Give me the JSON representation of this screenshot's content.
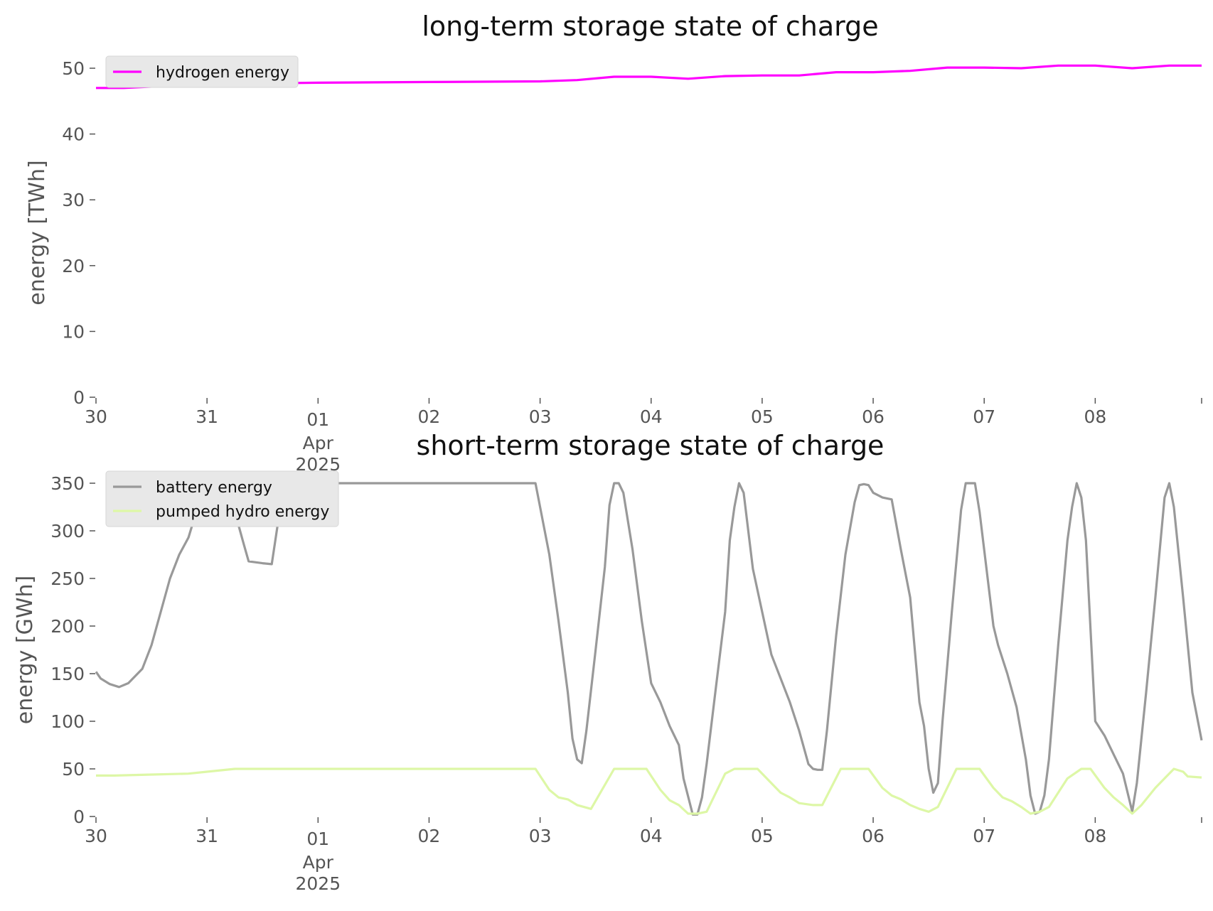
{
  "chart_data": [
    {
      "type": "line",
      "title": "long-term storage state of charge",
      "xlabel": "",
      "ylabel": "energy [TWh]",
      "xlim": [
        "2025-03-30 00:00",
        "2025-04-08 23:00"
      ],
      "ylim": [
        0,
        50
      ],
      "yticks": [
        0,
        10,
        20,
        30,
        40,
        50
      ],
      "xticks": [
        {
          "date": "2025-03-30",
          "label": "30"
        },
        {
          "date": "2025-03-31",
          "label": "31"
        },
        {
          "date": "2025-04-01",
          "label": "01",
          "month": "Apr",
          "year": "2025"
        },
        {
          "date": "2025-04-02",
          "label": "02"
        },
        {
          "date": "2025-04-03",
          "label": "03"
        },
        {
          "date": "2025-04-04",
          "label": "04"
        },
        {
          "date": "2025-04-05",
          "label": "05"
        },
        {
          "date": "2025-04-06",
          "label": "06"
        },
        {
          "date": "2025-04-07",
          "label": "07"
        },
        {
          "date": "2025-04-08",
          "label": "08"
        }
      ],
      "grid": false,
      "legend_position": "top-left",
      "series": [
        {
          "name": "hydrogen energy",
          "color": "#ff00ff",
          "points": [
            [
              "2025-03-30 00:00",
              47.0
            ],
            [
              "2025-03-30 06:00",
              47.0
            ],
            [
              "2025-03-30 12:00",
              47.2
            ],
            [
              "2025-03-30 18:00",
              47.5
            ],
            [
              "2025-03-31 00:00",
              47.6
            ],
            [
              "2025-03-31 12:00",
              47.7
            ],
            [
              "2025-04-01 00:00",
              47.8
            ],
            [
              "2025-04-02 00:00",
              47.9
            ],
            [
              "2025-04-03 00:00",
              48.0
            ],
            [
              "2025-04-03 08:00",
              48.2
            ],
            [
              "2025-04-03 16:00",
              48.7
            ],
            [
              "2025-04-04 00:00",
              48.7
            ],
            [
              "2025-04-04 08:00",
              48.4
            ],
            [
              "2025-04-04 16:00",
              48.8
            ],
            [
              "2025-04-05 00:00",
              48.9
            ],
            [
              "2025-04-05 08:00",
              48.9
            ],
            [
              "2025-04-05 16:00",
              49.4
            ],
            [
              "2025-04-06 00:00",
              49.4
            ],
            [
              "2025-04-06 08:00",
              49.6
            ],
            [
              "2025-04-06 16:00",
              50.1
            ],
            [
              "2025-04-07 00:00",
              50.1
            ],
            [
              "2025-04-07 08:00",
              50.0
            ],
            [
              "2025-04-07 16:00",
              50.4
            ],
            [
              "2025-04-08 00:00",
              50.4
            ],
            [
              "2025-04-08 08:00",
              50.0
            ],
            [
              "2025-04-08 16:00",
              50.4
            ],
            [
              "2025-04-08 23:00",
              50.4
            ]
          ]
        }
      ]
    },
    {
      "type": "line",
      "title": "short-term storage state of charge",
      "xlabel": "",
      "ylabel": "energy [GWh]",
      "xlim": [
        "2025-03-30 00:00",
        "2025-04-08 23:00"
      ],
      "ylim": [
        0,
        350
      ],
      "yticks": [
        0,
        50,
        100,
        150,
        200,
        250,
        300,
        350
      ],
      "xticks": [
        {
          "date": "2025-03-30",
          "label": "30"
        },
        {
          "date": "2025-03-31",
          "label": "31"
        },
        {
          "date": "2025-04-01",
          "label": "01",
          "month": "Apr",
          "year": "2025"
        },
        {
          "date": "2025-04-02",
          "label": "02"
        },
        {
          "date": "2025-04-03",
          "label": "03"
        },
        {
          "date": "2025-04-04",
          "label": "04"
        },
        {
          "date": "2025-04-05",
          "label": "05"
        },
        {
          "date": "2025-04-06",
          "label": "06"
        },
        {
          "date": "2025-04-07",
          "label": "07"
        },
        {
          "date": "2025-04-08",
          "label": "08"
        }
      ],
      "grid": false,
      "legend_position": "top-left",
      "series": [
        {
          "name": "battery energy",
          "color": "#999999",
          "points": [
            [
              "2025-03-30 00:00",
              152
            ],
            [
              "2025-03-30 01:00",
              145
            ],
            [
              "2025-03-30 03:00",
              139
            ],
            [
              "2025-03-30 05:00",
              136
            ],
            [
              "2025-03-30 07:00",
              140
            ],
            [
              "2025-03-30 10:00",
              155
            ],
            [
              "2025-03-30 12:00",
              180
            ],
            [
              "2025-03-30 14:00",
              215
            ],
            [
              "2025-03-30 16:00",
              250
            ],
            [
              "2025-03-30 18:00",
              275
            ],
            [
              "2025-03-30 20:00",
              293
            ],
            [
              "2025-03-30 22:00",
              325
            ],
            [
              "2025-03-31 00:00",
              348
            ],
            [
              "2025-03-31 02:00",
              350
            ],
            [
              "2025-03-31 04:00",
              345
            ],
            [
              "2025-03-31 06:00",
              320
            ],
            [
              "2025-03-31 08:00",
              285
            ],
            [
              "2025-03-31 09:00",
              268
            ],
            [
              "2025-03-31 12:00",
              266
            ],
            [
              "2025-03-31 14:00",
              265
            ],
            [
              "2025-03-31 16:00",
              330
            ],
            [
              "2025-03-31 18:00",
              350
            ],
            [
              "2025-04-02 23:00",
              350
            ],
            [
              "2025-04-03 02:00",
              275
            ],
            [
              "2025-04-03 04:00",
              205
            ],
            [
              "2025-04-03 06:00",
              130
            ],
            [
              "2025-04-03 07:00",
              82
            ],
            [
              "2025-04-03 08:00",
              60
            ],
            [
              "2025-04-03 09:00",
              56
            ],
            [
              "2025-04-03 10:00",
              90
            ],
            [
              "2025-04-03 12:00",
              175
            ],
            [
              "2025-04-03 14:00",
              262
            ],
            [
              "2025-04-03 15:00",
              327
            ],
            [
              "2025-04-03 16:00",
              350
            ],
            [
              "2025-04-03 17:00",
              350
            ],
            [
              "2025-04-03 18:00",
              340
            ],
            [
              "2025-04-03 20:00",
              280
            ],
            [
              "2025-04-03 22:00",
              205
            ],
            [
              "2025-04-04 00:00",
              140
            ],
            [
              "2025-04-04 02:00",
              120
            ],
            [
              "2025-04-04 04:00",
              95
            ],
            [
              "2025-04-04 06:00",
              75
            ],
            [
              "2025-04-04 07:00",
              40
            ],
            [
              "2025-04-04 09:00",
              2
            ],
            [
              "2025-04-04 10:00",
              2
            ],
            [
              "2025-04-04 11:00",
              20
            ],
            [
              "2025-04-04 12:00",
              55
            ],
            [
              "2025-04-04 14:00",
              135
            ],
            [
              "2025-04-04 16:00",
              215
            ],
            [
              "2025-04-04 17:00",
              290
            ],
            [
              "2025-04-04 18:00",
              325
            ],
            [
              "2025-04-04 19:00",
              350
            ],
            [
              "2025-04-04 20:00",
              340
            ],
            [
              "2025-04-04 22:00",
              260
            ],
            [
              "2025-04-05 00:00",
              215
            ],
            [
              "2025-04-05 02:00",
              170
            ],
            [
              "2025-04-05 04:00",
              145
            ],
            [
              "2025-04-05 06:00",
              120
            ],
            [
              "2025-04-05 08:00",
              90
            ],
            [
              "2025-04-05 10:00",
              55
            ],
            [
              "2025-04-05 11:00",
              50
            ],
            [
              "2025-04-05 12:00",
              49
            ],
            [
              "2025-04-05 13:00",
              49
            ],
            [
              "2025-04-05 14:00",
              90
            ],
            [
              "2025-04-05 16:00",
              190
            ],
            [
              "2025-04-05 18:00",
              275
            ],
            [
              "2025-04-05 20:00",
              330
            ],
            [
              "2025-04-05 21:00",
              348
            ],
            [
              "2025-04-05 22:00",
              349
            ],
            [
              "2025-04-05 23:00",
              348
            ],
            [
              "2025-04-06 00:00",
              340
            ],
            [
              "2025-04-06 02:00",
              335
            ],
            [
              "2025-04-06 04:00",
              333
            ],
            [
              "2025-04-06 06:00",
              280
            ],
            [
              "2025-04-06 08:00",
              230
            ],
            [
              "2025-04-06 10:00",
              120
            ],
            [
              "2025-04-06 11:00",
              95
            ],
            [
              "2025-04-06 12:00",
              50
            ],
            [
              "2025-04-06 13:00",
              25
            ],
            [
              "2025-04-06 14:00",
              35
            ],
            [
              "2025-04-06 15:00",
              100
            ],
            [
              "2025-04-06 17:00",
              215
            ],
            [
              "2025-04-06 19:00",
              322
            ],
            [
              "2025-04-06 20:00",
              350
            ],
            [
              "2025-04-06 22:00",
              350
            ],
            [
              "2025-04-06 23:00",
              320
            ],
            [
              "2025-04-07 02:00",
              200
            ],
            [
              "2025-04-07 03:00",
              180
            ],
            [
              "2025-04-07 05:00",
              150
            ],
            [
              "2025-04-07 07:00",
              115
            ],
            [
              "2025-04-07 09:00",
              60
            ],
            [
              "2025-04-07 10:00",
              22
            ],
            [
              "2025-04-07 11:00",
              3
            ],
            [
              "2025-04-07 12:00",
              5
            ],
            [
              "2025-04-07 13:00",
              22
            ],
            [
              "2025-04-07 14:00",
              60
            ],
            [
              "2025-04-07 16:00",
              180
            ],
            [
              "2025-04-07 18:00",
              290
            ],
            [
              "2025-04-07 19:00",
              325
            ],
            [
              "2025-04-07 20:00",
              350
            ],
            [
              "2025-04-07 21:00",
              335
            ],
            [
              "2025-04-07 22:00",
              290
            ],
            [
              "2025-04-08 00:00",
              100
            ],
            [
              "2025-04-08 02:00",
              85
            ],
            [
              "2025-04-08 04:00",
              65
            ],
            [
              "2025-04-08 06:00",
              45
            ],
            [
              "2025-04-08 07:00",
              25
            ],
            [
              "2025-04-08 08:00",
              5
            ],
            [
              "2025-04-08 09:00",
              35
            ],
            [
              "2025-04-08 11:00",
              130
            ],
            [
              "2025-04-08 13:00",
              230
            ],
            [
              "2025-04-08 15:00",
              335
            ],
            [
              "2025-04-08 16:00",
              350
            ],
            [
              "2025-04-08 17:00",
              325
            ],
            [
              "2025-04-08 19:00",
              230
            ],
            [
              "2025-04-08 21:00",
              130
            ],
            [
              "2025-04-08 23:00",
              80
            ]
          ]
        },
        {
          "name": "pumped hydro energy",
          "color": "#ddf7a6",
          "points": [
            [
              "2025-03-30 00:00",
              43
            ],
            [
              "2025-03-30 04:00",
              43
            ],
            [
              "2025-03-30 12:00",
              44
            ],
            [
              "2025-03-30 20:00",
              45
            ],
            [
              "2025-03-31 00:00",
              47
            ],
            [
              "2025-03-31 06:00",
              50
            ],
            [
              "2025-04-02 23:00",
              50
            ],
            [
              "2025-04-03 02:00",
              28
            ],
            [
              "2025-04-03 04:00",
              20
            ],
            [
              "2025-04-03 06:00",
              18
            ],
            [
              "2025-04-03 08:00",
              12
            ],
            [
              "2025-04-03 11:00",
              8
            ],
            [
              "2025-04-03 16:00",
              50
            ],
            [
              "2025-04-03 23:00",
              50
            ],
            [
              "2025-04-04 02:00",
              28
            ],
            [
              "2025-04-04 04:00",
              17
            ],
            [
              "2025-04-04 06:00",
              12
            ],
            [
              "2025-04-04 08:00",
              3
            ],
            [
              "2025-04-04 10:00",
              3
            ],
            [
              "2025-04-04 12:00",
              5
            ],
            [
              "2025-04-04 16:00",
              45
            ],
            [
              "2025-04-04 18:00",
              50
            ],
            [
              "2025-04-04 23:00",
              50
            ],
            [
              "2025-04-05 02:00",
              35
            ],
            [
              "2025-04-05 04:00",
              25
            ],
            [
              "2025-04-05 06:00",
              20
            ],
            [
              "2025-04-05 08:00",
              14
            ],
            [
              "2025-04-05 11:00",
              12
            ],
            [
              "2025-04-05 13:00",
              12
            ],
            [
              "2025-04-05 17:00",
              50
            ],
            [
              "2025-04-05 23:00",
              50
            ],
            [
              "2025-04-06 02:00",
              30
            ],
            [
              "2025-04-06 04:00",
              22
            ],
            [
              "2025-04-06 06:00",
              18
            ],
            [
              "2025-04-06 08:00",
              12
            ],
            [
              "2025-04-06 10:00",
              8
            ],
            [
              "2025-04-06 12:00",
              5
            ],
            [
              "2025-04-06 14:00",
              10
            ],
            [
              "2025-04-06 18:00",
              50
            ],
            [
              "2025-04-06 23:00",
              50
            ],
            [
              "2025-04-07 02:00",
              30
            ],
            [
              "2025-04-07 04:00",
              20
            ],
            [
              "2025-04-07 06:00",
              16
            ],
            [
              "2025-04-07 08:00",
              10
            ],
            [
              "2025-04-07 10:00",
              3
            ],
            [
              "2025-04-07 12:00",
              5
            ],
            [
              "2025-04-07 14:00",
              10
            ],
            [
              "2025-04-07 18:00",
              40
            ],
            [
              "2025-04-07 21:00",
              50
            ],
            [
              "2025-04-07 23:00",
              50
            ],
            [
              "2025-04-08 02:00",
              30
            ],
            [
              "2025-04-08 04:00",
              20
            ],
            [
              "2025-04-08 06:00",
              12
            ],
            [
              "2025-04-08 08:00",
              3
            ],
            [
              "2025-04-08 10:00",
              12
            ],
            [
              "2025-04-08 13:00",
              30
            ],
            [
              "2025-04-08 15:00",
              40
            ],
            [
              "2025-04-08 17:00",
              50
            ],
            [
              "2025-04-08 19:00",
              47
            ],
            [
              "2025-04-08 20:00",
              42
            ],
            [
              "2025-04-08 23:00",
              41
            ]
          ]
        }
      ]
    }
  ]
}
